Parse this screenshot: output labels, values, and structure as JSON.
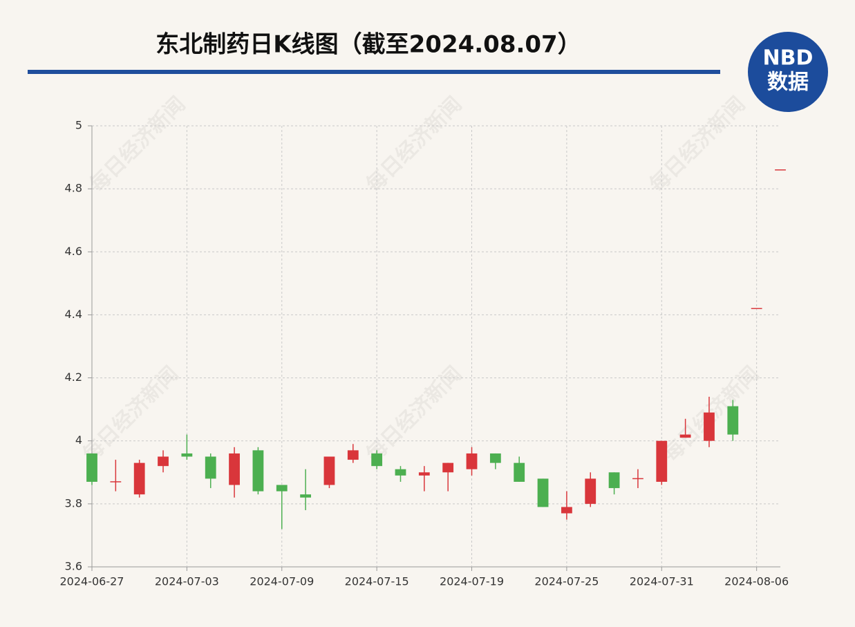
{
  "chart_data": {
    "type": "candlestick",
    "title": "东北制药日K线图（截至2024.08.07）",
    "watermark": "每日经济新闻",
    "logo": {
      "top": "NBD",
      "bottom": "数据"
    },
    "categories": [
      "2024-06-27",
      null,
      null,
      null,
      "2024-07-03",
      null,
      null,
      null,
      "2024-07-09",
      null,
      null,
      null,
      "2024-07-15",
      null,
      null,
      null,
      "2024-07-19",
      null,
      null,
      null,
      "2024-07-25",
      null,
      null,
      null,
      "2024-07-31",
      null,
      null,
      null,
      "2024-08-06",
      null
    ],
    "open": [
      3.96,
      3.87,
      3.83,
      3.92,
      3.96,
      3.95,
      3.86,
      3.97,
      3.86,
      3.83,
      3.86,
      3.94,
      3.96,
      3.91,
      3.89,
      3.9,
      3.91,
      3.96,
      3.93,
      3.88,
      3.77,
      3.8,
      3.9,
      3.88,
      3.87,
      4.01,
      4.0,
      4.11,
      4.42,
      4.86
    ],
    "high": [
      3.96,
      3.94,
      3.94,
      3.97,
      4.02,
      3.96,
      3.98,
      3.98,
      3.86,
      3.91,
      3.95,
      3.99,
      3.97,
      3.92,
      3.92,
      3.93,
      3.98,
      3.96,
      3.95,
      3.88,
      3.84,
      3.9,
      3.9,
      3.91,
      4.0,
      4.07,
      4.14,
      4.13,
      4.42,
      4.86
    ],
    "low": [
      3.86,
      3.84,
      3.82,
      3.9,
      3.94,
      3.85,
      3.82,
      3.83,
      3.72,
      3.78,
      3.85,
      3.93,
      3.91,
      3.87,
      3.84,
      3.84,
      3.89,
      3.91,
      3.87,
      3.79,
      3.75,
      3.79,
      3.83,
      3.85,
      3.86,
      4.01,
      3.98,
      4.0,
      4.42,
      4.86
    ],
    "close": [
      3.87,
      3.87,
      3.93,
      3.95,
      3.95,
      3.88,
      3.96,
      3.84,
      3.84,
      3.82,
      3.95,
      3.97,
      3.92,
      3.89,
      3.9,
      3.93,
      3.96,
      3.93,
      3.87,
      3.79,
      3.79,
      3.88,
      3.85,
      3.88,
      4.0,
      4.02,
      4.09,
      4.02,
      4.42,
      4.86
    ],
    "up_color": "#d9363b",
    "down_color": "#4caf50",
    "ylim": [
      3.6,
      5
    ],
    "yticks": [
      3.6,
      3.8,
      4,
      4.2,
      4.4,
      4.6,
      4.8,
      5
    ],
    "grid": true
  }
}
